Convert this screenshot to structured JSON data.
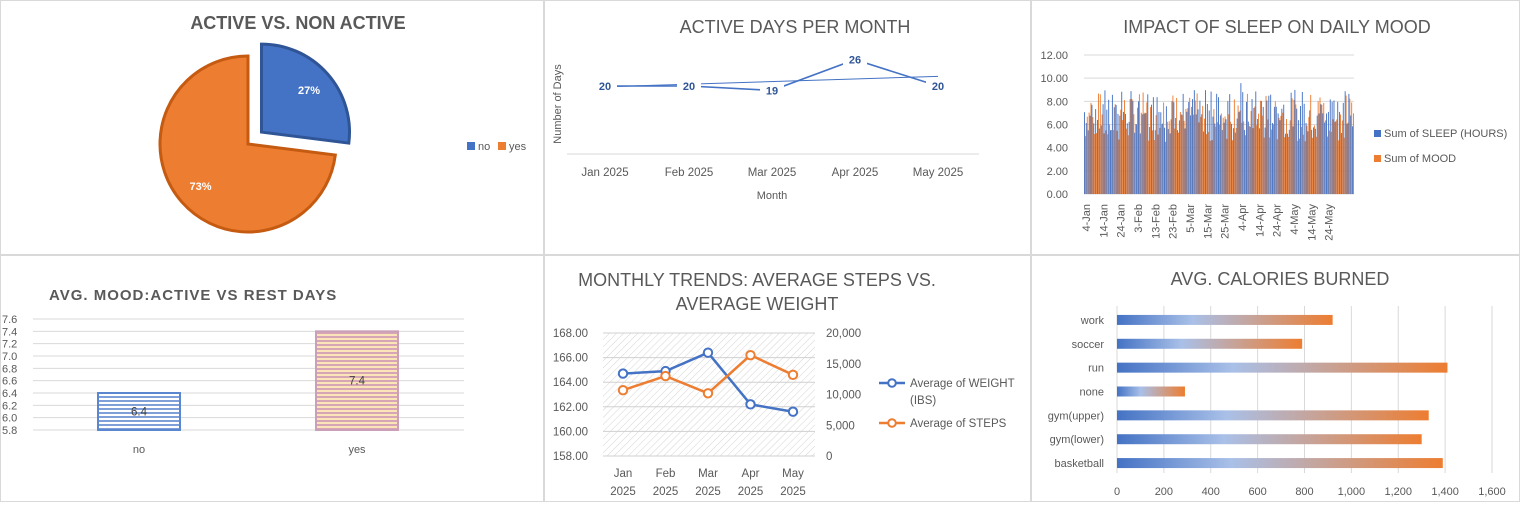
{
  "colors": {
    "blue": "#4472c4",
    "orange": "#ed7d31",
    "grid": "#d9d9d9",
    "text": "#595959"
  },
  "chart_data": [
    {
      "type": "pie",
      "title": "ACTIVE VS. NON ACTIVE",
      "categories": [
        "no",
        "yes"
      ],
      "values": [
        27,
        73
      ],
      "labels": [
        "27%",
        "73%"
      ],
      "legend_position": "right",
      "exploded": "no"
    },
    {
      "type": "line",
      "title": "ACTIVE DAYS PER MONTH",
      "xlabel": "Month",
      "ylabel": "Number of Days",
      "categories": [
        "Jan 2025",
        "Feb 2025",
        "Mar 2025",
        "Apr 2025",
        "May 2025"
      ],
      "values": [
        20,
        20,
        19,
        26,
        20
      ],
      "trendline": true
    },
    {
      "type": "bar",
      "title": "IMPACT OF SLEEP ON DAILY MOOD",
      "y_ticks": [
        "12.00",
        "10.00",
        "8.00",
        "6.00",
        "4.00",
        "2.00",
        "0.00"
      ],
      "ylim": [
        0,
        12
      ],
      "x_tick_labels": [
        "4-Jan",
        "14-Jan",
        "24-Jan",
        "3-Feb",
        "13-Feb",
        "23-Feb",
        "5-Mar",
        "15-Mar",
        "25-Mar",
        "4-Apr",
        "14-Apr",
        "24-Apr",
        "4-May",
        "14-May",
        "24-May"
      ],
      "series": [
        {
          "name": "Sum of SLEEP (HOURS)"
        },
        {
          "name": "Sum of MOOD"
        }
      ],
      "legend_position": "right"
    },
    {
      "type": "bar",
      "title": "AVG. MOOD:ACTIVE VS REST DAYS",
      "categories": [
        "no",
        "yes"
      ],
      "values": [
        6.4,
        7.4
      ],
      "data_labels": [
        "6.4",
        "7.4"
      ],
      "y_ticks": [
        "7.6",
        "7.4",
        "7.2",
        "7.0",
        "6.8",
        "6.6",
        "6.4",
        "6.2",
        "6.0",
        "5.8"
      ],
      "ylim": [
        5.8,
        7.6
      ]
    },
    {
      "type": "line",
      "title": "MONTHLY TRENDS: AVERAGE STEPS VS. AVERAGE WEIGHT",
      "title_lines": [
        "MONTHLY TRENDS: AVERAGE STEPS VS.",
        "AVERAGE WEIGHT"
      ],
      "categories": [
        [
          "Jan",
          "2025"
        ],
        [
          "Feb",
          "2025"
        ],
        [
          "Mar",
          "2025"
        ],
        [
          "Apr",
          "2025"
        ],
        [
          "May",
          "2025"
        ]
      ],
      "left_ticks": [
        "168.00",
        "166.00",
        "164.00",
        "162.00",
        "160.00",
        "158.00"
      ],
      "left_lim": [
        158,
        168
      ],
      "right_ticks": [
        "20,000",
        "15,000",
        "10,000",
        "5,000",
        "0"
      ],
      "right_lim": [
        0,
        20000
      ],
      "series": [
        {
          "name": "Average of WEIGHT (IBS)",
          "name_lines": [
            "Average of WEIGHT",
            "(IBS)"
          ],
          "axis": "left",
          "values": [
            164.7,
            164.9,
            166.4,
            162.2,
            161.6
          ]
        },
        {
          "name": "Average of STEPS",
          "name_lines": [
            "Average of STEPS"
          ],
          "axis": "right",
          "values": [
            10700,
            13000,
            10200,
            16400,
            13200
          ]
        }
      ],
      "legend_position": "right"
    },
    {
      "type": "bar",
      "orientation": "horizontal",
      "title": "AVG. CALORIES BURNED",
      "categories": [
        "work",
        "soccer",
        "run",
        "none",
        "gym(upper)",
        "gym(lower)",
        "basketball"
      ],
      "values": [
        920,
        790,
        1410,
        290,
        1330,
        1300,
        1390
      ],
      "x_ticks": [
        "0",
        "200",
        "400",
        "600",
        "800",
        "1,000",
        "1,200",
        "1,400",
        "1,600"
      ],
      "xlim": [
        0,
        1600
      ]
    }
  ]
}
